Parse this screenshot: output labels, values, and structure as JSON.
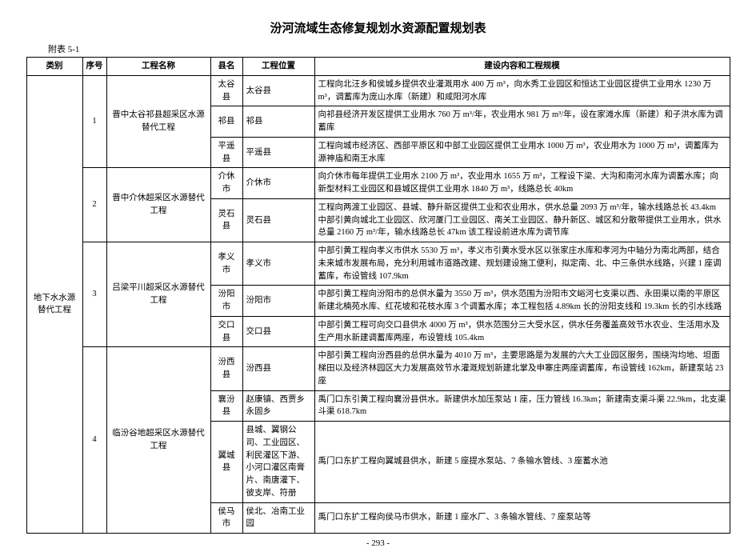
{
  "title": "汾河流域生态修复规划水资源配置规划表",
  "appendix": "附表 5-1",
  "footer": "- 293 -",
  "headers": {
    "category": "类别",
    "seq": "序号",
    "project": "工程名称",
    "county": "县名",
    "location": "工程位置",
    "content": "建设内容和工程规模"
  },
  "category": "地下水水源替代工程",
  "rows": [
    {
      "seq": "1",
      "project": "晋中太谷祁县超采区水源替代工程",
      "entries": [
        {
          "county": "太谷县",
          "location": "太谷县",
          "content": "工程向北汪乡和侯城乡提供农业灌溉用水 400 万 m³，向水秀工业园区和恒达工业园区提供工业用水 1230 万 m³，调蓄库为庞山水库（新建）和咸阳河水库"
        },
        {
          "county": "祁县",
          "location": "祁县",
          "content": "向祁县经济开发区提供工业用水 760 万 m³/年，农业用水 981 万 m³/年，设在家滩水库（新建）和子洪水库为调蓄库"
        },
        {
          "county": "平遥县",
          "location": "平遥县",
          "content": "工程向城市经济区、西部平原区和中部工业园区提供工业用水 1000 万 m³，农业用水为 1000 万 m³，调蓄库为源神庙和南王水库"
        }
      ]
    },
    {
      "seq": "2",
      "project": "晋中介休超采区水源替代工程",
      "entries": [
        {
          "county": "介休市",
          "location": "介休市",
          "content": "向介休市每年提供工业用水 2100 万 m³，农业用水 1655 万 m³，工程设下梁、大沟和南河水库为调蓄水库；向新型材料工业园区和县城区提供工业用水 1840 万 m³，线路总长 40km"
        },
        {
          "county": "灵石县",
          "location": "灵石县",
          "content": "工程向两渡工业园区、县城、静升新区提供工业和农业用水，供水总量 2093 万 m³/年，输水线路总长 43.4km 中部引黄向城北工业园区、欣河厦门工业园区、南关工业园区、静升新区、城区和分散带提供工业用水，供水总量 2160 万 m³/年，输水线路总长 47km 该工程设前进水库为调节库"
        }
      ]
    },
    {
      "seq": "3",
      "project": "吕梁平川超采区水源替代工程",
      "entries": [
        {
          "county": "孝义市",
          "location": "孝义市",
          "content": "中部引黄工程向孝义市供水 5530 万 m³，孝义市引黄水受水区以张家庄水库和孝河为中轴分为南北两部，结合未来城市发展布局，充分利用城市道路改建、规划建设施工便利，拟定南、北、中三条供水线路，兴建 1 座调蓄库，布设管线 107.9km"
        },
        {
          "county": "汾阳市",
          "location": "汾阳市",
          "content": "中部引黄工程向汾阳市的总供水量为 3550 万 m³，供水范围为汾阳市文峪河七支渠以西、永田渠以南的平原区新建北楠苑水库、红花坡和花枝水库 3 个调蓄水库；本工程包括 4.89km 长的汾阳支线和 19.3km 长的引水线路"
        },
        {
          "county": "交口县",
          "location": "交口县",
          "content": "中部引黄工程可向交口县供水 4000 万 m³，供水范围分三大受水区，供水任务覆盖高效节水农业、生活用水及生产用水新建调蓄库两座，布设管线 105.4km"
        }
      ]
    },
    {
      "seq": "4",
      "project": "临汾谷地超采区水源替代工程",
      "entries": [
        {
          "county": "汾西县",
          "location": "汾西县",
          "content": "中部引黄工程向汾西县的总供水量为 4010 万 m³，主要思路是为发展的六大工业园区服务，围绕沟均地、坦面梯田以及经济林园区大力发展高效节水灌溉规划新建北掌及申寨庄两座调蓄库，布设管线 162km，新建泵站 23 座"
        },
        {
          "county": "襄汾县",
          "location": "赵康镇、西贾乡永固乡",
          "content": "禹门口东引黄工程向襄汾县供水。新建供水加压泵站 1 座，压力管线 16.3km；新建南支渠斗渠 22.9km，北支渠斗渠 618.7km"
        },
        {
          "county": "翼城县",
          "location": "县城、翼钢公司、工业园区、利民灌区下游、小河口灌区南膏片、南唐灌下、彼支岸、符册",
          "content": "禹门口东扩工程向翼城县供水，新建 5 座提水泵站、7 条输水管线、3 座蓄水池"
        },
        {
          "county": "侯马市",
          "location": "侯北、冶南工业园",
          "content": "禹门口东扩工程向侯马市供水，新建 1 座水厂、3 条输水管线、7 座泵站等"
        }
      ]
    }
  ]
}
